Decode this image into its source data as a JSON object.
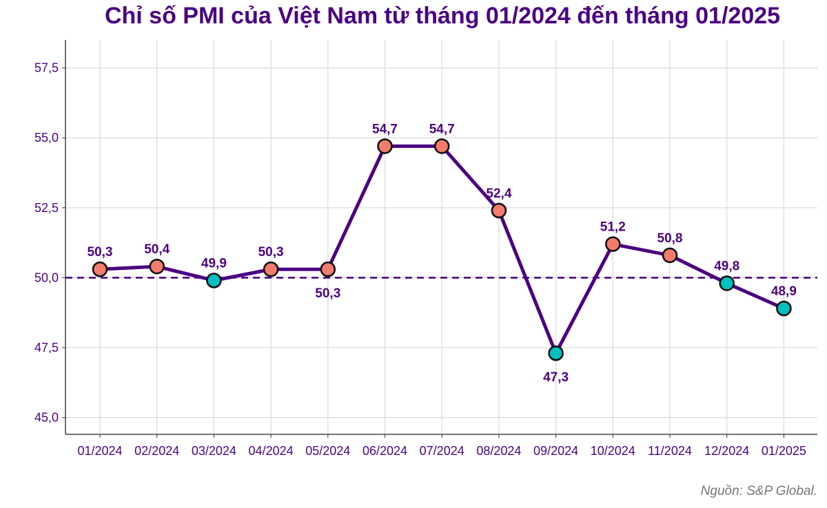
{
  "chart_data": {
    "type": "line",
    "title": "Chỉ số PMI của Việt Nam từ tháng 01/2024 đến tháng 01/2025",
    "source": "Nguồn: S&P Global.",
    "categories": [
      "01/2024",
      "02/2024",
      "03/2024",
      "04/2024",
      "05/2024",
      "06/2024",
      "07/2024",
      "08/2024",
      "09/2024",
      "10/2024",
      "11/2024",
      "12/2024",
      "01/2025"
    ],
    "category_colors": [
      "#4b0082",
      "#4b0082",
      "#4b0082",
      "#4b0082",
      "#4b0082",
      "#4b0082",
      "#4b0082",
      "#4b0082",
      "#4b0082",
      "#4b0082",
      "#4b0082",
      "#4b0082",
      "#ff0000"
    ],
    "values": [
      50.3,
      50.4,
      49.9,
      50.3,
      50.3,
      54.7,
      54.7,
      52.4,
      47.3,
      51.2,
      50.8,
      49.8,
      48.9
    ],
    "value_labels": [
      "50,3",
      "50,4",
      "49,9",
      "50,3",
      "50,3",
      "54,7",
      "54,7",
      "52,4",
      "47,3",
      "51,2",
      "50,8",
      "49,8",
      "48,9"
    ],
    "label_positions": [
      "above",
      "above",
      "above",
      "above",
      "below",
      "above",
      "above",
      "above",
      "below",
      "above",
      "above",
      "above",
      "above"
    ],
    "yticks": [
      "45,0",
      "47,5",
      "50,0",
      "52,5",
      "55,0",
      "57,5"
    ],
    "ytick_values": [
      45,
      47.5,
      50,
      52.5,
      55,
      57.5
    ],
    "ylim": [
      44.4,
      58.5
    ],
    "reference_line": 50,
    "colors": {
      "line": "#4b0082",
      "above_50": "#f47c6c",
      "below_50": "#00c0c0",
      "grid": "#d9d9d9"
    },
    "xlabel": "",
    "ylabel": "",
    "grid": true
  }
}
